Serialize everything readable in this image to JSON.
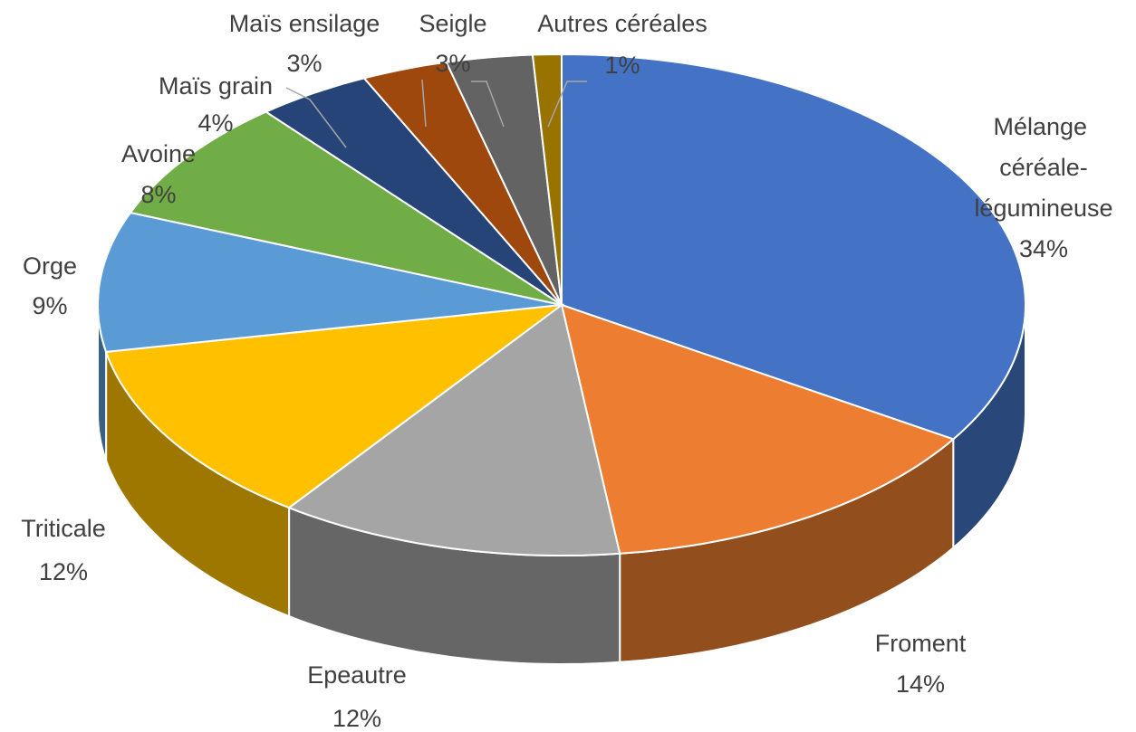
{
  "chart_data": {
    "type": "pie3d",
    "categories": [
      "Mélange céréale-légumineuse",
      "Froment",
      "Epeautre",
      "Triticale",
      "Orge",
      "Avoine",
      "Maïs grain",
      "Maïs ensilage",
      "Seigle",
      "Autres céréales"
    ],
    "values": [
      34,
      14,
      12,
      12,
      9,
      8,
      4,
      3,
      3,
      1
    ],
    "value_labels": [
      "34%",
      "14%",
      "12%",
      "12%",
      "9%",
      "8%",
      "4%",
      "3%",
      "3%",
      "1%"
    ],
    "colors": [
      "#4472c4",
      "#ed7d31",
      "#a5a5a5",
      "#ffc000",
      "#5b9bd5",
      "#70ad47",
      "#264478",
      "#9e480e",
      "#636363",
      "#997300"
    ]
  }
}
